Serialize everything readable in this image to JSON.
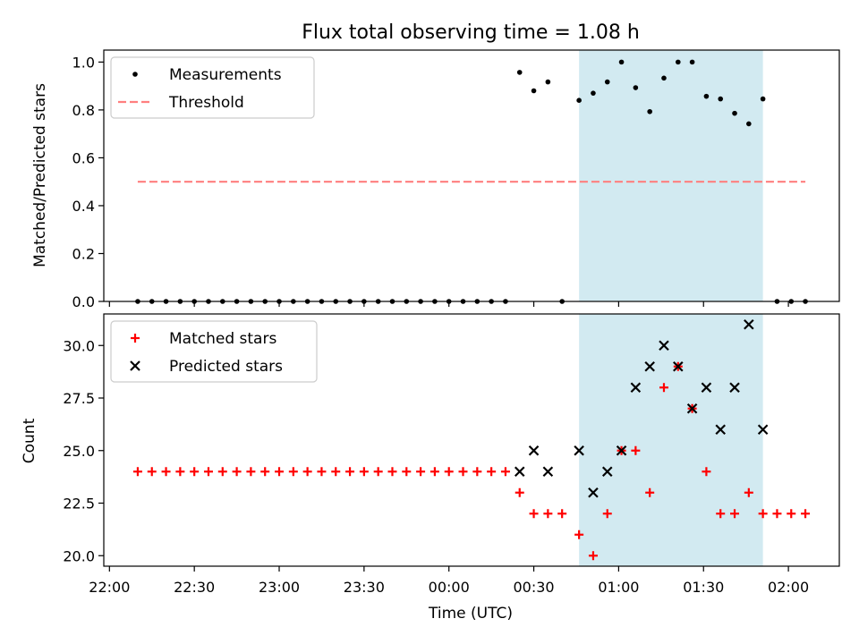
{
  "chart_data": [
    {
      "type": "scatter",
      "title": "Flux total observing time = 1.08 h",
      "xlabel": "",
      "ylabel": "Matched/Predicted stars",
      "ylim": [
        0,
        1.05
      ],
      "xlim": [
        "21:58",
        "02:18"
      ],
      "yticks": [
        0.0,
        0.2,
        0.4,
        0.6,
        0.8,
        1.0
      ],
      "ytick_labels": [
        "0.0",
        "0.2",
        "0.4",
        "0.6",
        "0.8",
        "1.0"
      ],
      "grid": false,
      "legend_position": "upper-left",
      "highlight_span": {
        "x_start": "00:46",
        "x_end": "01:51",
        "color": "#add8e6"
      },
      "series": [
        {
          "name": "Measurements",
          "kind": "scatter",
          "marker": "dot",
          "color": "#000000",
          "x": [
            "22:10",
            "22:15",
            "22:20",
            "22:25",
            "22:30",
            "22:35",
            "22:40",
            "22:45",
            "22:50",
            "22:55",
            "23:00",
            "23:05",
            "23:10",
            "23:15",
            "23:20",
            "23:25",
            "23:30",
            "23:35",
            "23:40",
            "23:45",
            "23:50",
            "23:55",
            "00:00",
            "00:05",
            "00:10",
            "00:15",
            "00:20",
            "00:25",
            "00:30",
            "00:35",
            "00:40",
            "00:46",
            "00:51",
            "00:56",
            "01:01",
            "01:06",
            "01:11",
            "01:16",
            "01:21",
            "01:26",
            "01:31",
            "01:36",
            "01:41",
            "01:46",
            "01:51",
            "01:56",
            "02:01",
            "02:06"
          ],
          "y": [
            0,
            0,
            0,
            0,
            0,
            0,
            0,
            0,
            0,
            0,
            0,
            0,
            0,
            0,
            0,
            0,
            0,
            0,
            0,
            0,
            0,
            0,
            0,
            0,
            0,
            0,
            0,
            0.957,
            0.88,
            0.917,
            0,
            0.84,
            0.87,
            0.917,
            1.0,
            0.893,
            0.793,
            0.933,
            1.0,
            1.0,
            0.857,
            0.846,
            0.786,
            0.742,
            0.846,
            0,
            0,
            0
          ]
        },
        {
          "name": "Threshold",
          "kind": "line",
          "dash": "dashed",
          "color": "#ff7f7f",
          "x": [
            "22:10",
            "02:06"
          ],
          "y": [
            0.5,
            0.5
          ]
        }
      ]
    },
    {
      "type": "scatter",
      "xlabel": "Time (UTC)",
      "ylabel": "Count",
      "ylim": [
        19.5,
        31.5
      ],
      "xlim": [
        "21:58",
        "02:18"
      ],
      "yticks": [
        20.0,
        22.5,
        25.0,
        27.5,
        30.0
      ],
      "ytick_labels": [
        "20.0",
        "22.5",
        "25.0",
        "27.5",
        "30.0"
      ],
      "xtick_values": [
        "22:00",
        "22:30",
        "23:00",
        "23:30",
        "00:00",
        "00:30",
        "01:00",
        "01:30",
        "02:00"
      ],
      "xtick_labels": [
        "22:00",
        "22:30",
        "23:00",
        "23:30",
        "00:00",
        "00:30",
        "01:00",
        "01:30",
        "02:00"
      ],
      "grid": false,
      "legend_position": "upper-left",
      "highlight_span": {
        "x_start": "00:46",
        "x_end": "01:51",
        "color": "#add8e6"
      },
      "series": [
        {
          "name": "Matched stars",
          "marker": "plus",
          "color": "#ff0000",
          "x": [
            "22:10",
            "22:15",
            "22:20",
            "22:25",
            "22:30",
            "22:35",
            "22:40",
            "22:45",
            "22:50",
            "22:55",
            "23:00",
            "23:05",
            "23:10",
            "23:15",
            "23:20",
            "23:25",
            "23:30",
            "23:35",
            "23:40",
            "23:45",
            "23:50",
            "23:55",
            "00:00",
            "00:05",
            "00:10",
            "00:15",
            "00:20",
            "00:25",
            "00:30",
            "00:35",
            "00:40",
            "00:46",
            "00:51",
            "00:56",
            "01:01",
            "01:06",
            "01:11",
            "01:16",
            "01:21",
            "01:26",
            "01:31",
            "01:36",
            "01:41",
            "01:46",
            "01:51",
            "01:56",
            "02:01",
            "02:06"
          ],
          "y": [
            24,
            24,
            24,
            24,
            24,
            24,
            24,
            24,
            24,
            24,
            24,
            24,
            24,
            24,
            24,
            24,
            24,
            24,
            24,
            24,
            24,
            24,
            24,
            24,
            24,
            24,
            24,
            23,
            22,
            22,
            22,
            21,
            20,
            22,
            25,
            25,
            23,
            28,
            29,
            27,
            24,
            22,
            22,
            23,
            22,
            22,
            22,
            22
          ]
        },
        {
          "name": "Predicted stars",
          "marker": "x",
          "color": "#000000",
          "x": [
            "00:25",
            "00:30",
            "00:35",
            "00:46",
            "00:51",
            "00:56",
            "01:01",
            "01:06",
            "01:11",
            "01:16",
            "01:21",
            "01:26",
            "01:31",
            "01:36",
            "01:41",
            "01:46",
            "01:51"
          ],
          "y": [
            24,
            25,
            24,
            25,
            23,
            24,
            25,
            28,
            29,
            30,
            29,
            27,
            28,
            26,
            28,
            31,
            26
          ]
        }
      ]
    }
  ]
}
